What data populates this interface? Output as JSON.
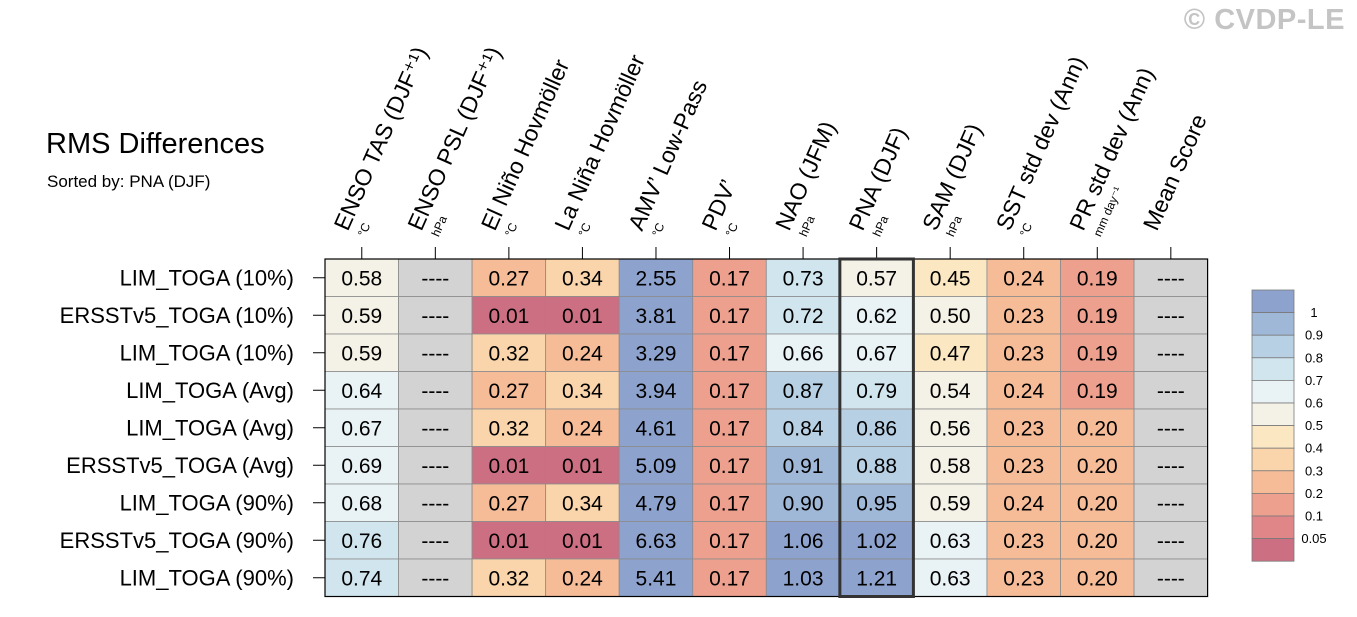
{
  "watermark": "© CVDP-LE",
  "chart_data": {
    "type": "heatmap",
    "title": "RMS Differences",
    "subtitle": "Sorted by: PNA (DJF)",
    "columns": [
      {
        "label": "ENSO TAS (DJF⁺¹)",
        "unit": "°C"
      },
      {
        "label": "ENSO PSL (DJF⁺¹)",
        "unit": "hPa"
      },
      {
        "label": "El Niño Hovmöller",
        "unit": "°C"
      },
      {
        "label": "La Niña Hovmöller",
        "unit": "°C"
      },
      {
        "label": "AMV’ Low-Pass",
        "unit": "°C"
      },
      {
        "label": "PDV’",
        "unit": "°C"
      },
      {
        "label": "NAO (JFM)",
        "unit": "hPa"
      },
      {
        "label": "PNA (DJF)",
        "unit": "hPa"
      },
      {
        "label": "SAM (DJF)",
        "unit": "hPa"
      },
      {
        "label": "SST std dev (Ann)",
        "unit": "°C"
      },
      {
        "label": "PR std dev (Ann)",
        "unit": "mm day⁻¹"
      },
      {
        "label": "Mean Score",
        "unit": ""
      }
    ],
    "rows": [
      "LIM_TOGA (10%)",
      "ERSSTv5_TOGA (10%)",
      "LIM_TOGA (10%)",
      "LIM_TOGA (Avg)",
      "LIM_TOGA (Avg)",
      "ERSSTv5_TOGA (Avg)",
      "LIM_TOGA (90%)",
      "ERSSTv5_TOGA (90%)",
      "LIM_TOGA (90%)"
    ],
    "values": [
      [
        "0.58",
        "----",
        "0.27",
        "0.34",
        "2.55",
        "0.17",
        "0.73",
        "0.57",
        "0.45",
        "0.24",
        "0.19",
        "----"
      ],
      [
        "0.59",
        "----",
        "0.01",
        "0.01",
        "3.81",
        "0.17",
        "0.72",
        "0.62",
        "0.50",
        "0.23",
        "0.19",
        "----"
      ],
      [
        "0.59",
        "----",
        "0.32",
        "0.24",
        "3.29",
        "0.17",
        "0.66",
        "0.67",
        "0.47",
        "0.23",
        "0.19",
        "----"
      ],
      [
        "0.64",
        "----",
        "0.27",
        "0.34",
        "3.94",
        "0.17",
        "0.87",
        "0.79",
        "0.54",
        "0.24",
        "0.19",
        "----"
      ],
      [
        "0.67",
        "----",
        "0.32",
        "0.24",
        "4.61",
        "0.17",
        "0.84",
        "0.86",
        "0.56",
        "0.23",
        "0.20",
        "----"
      ],
      [
        "0.69",
        "----",
        "0.01",
        "0.01",
        "5.09",
        "0.17",
        "0.91",
        "0.88",
        "0.58",
        "0.23",
        "0.20",
        "----"
      ],
      [
        "0.68",
        "----",
        "0.27",
        "0.34",
        "4.79",
        "0.17",
        "0.90",
        "0.95",
        "0.59",
        "0.24",
        "0.20",
        "----"
      ],
      [
        "0.76",
        "----",
        "0.01",
        "0.01",
        "6.63",
        "0.17",
        "1.06",
        "1.02",
        "0.63",
        "0.23",
        "0.20",
        "----"
      ],
      [
        "0.74",
        "----",
        "0.32",
        "0.24",
        "5.41",
        "0.17",
        "1.03",
        "1.21",
        "0.63",
        "0.23",
        "0.20",
        "----"
      ]
    ],
    "highlighted_column": "PNA (DJF)",
    "missing_color": "#d3d3d3",
    "colorbar": {
      "levels": [
        "1",
        "0.9",
        "0.8",
        "0.7",
        "0.6",
        "0.5",
        "0.4",
        "0.3",
        "0.2",
        "0.1",
        "0.05"
      ],
      "colors": [
        "#8da2cd",
        "#a0b8d8",
        "#b7d0e3",
        "#d1e5ef",
        "#e9f2f5",
        "#f4f1e6",
        "#fbe8c3",
        "#fad4aa",
        "#f6bc98",
        "#eea08e",
        "#e08588",
        "#cd6f82"
      ]
    }
  }
}
